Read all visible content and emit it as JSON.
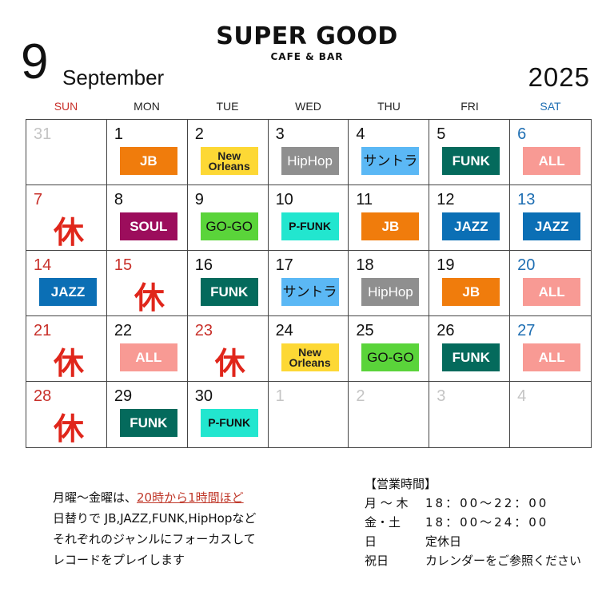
{
  "header": {
    "logo_main": "SUPER GOOD",
    "logo_sub": "CAFE & BAR",
    "month_number": "9",
    "month_name": "September",
    "year": "2025"
  },
  "weekdays": [
    {
      "label": "SUN",
      "color": "#c8302a"
    },
    {
      "label": "MON",
      "color": "#222222"
    },
    {
      "label": "TUE",
      "color": "#222222"
    },
    {
      "label": "WED",
      "color": "#222222"
    },
    {
      "label": "THU",
      "color": "#222222"
    },
    {
      "label": "FRI",
      "color": "#222222"
    },
    {
      "label": "SAT",
      "color": "#1f6fb3"
    }
  ],
  "closed_label": "休",
  "genres": {
    "JB": {
      "bg": "#f07c0c",
      "fg": "#ffffff"
    },
    "New Orleans": {
      "bg": "#fdd835",
      "fg": "#222222"
    },
    "HipHop": {
      "bg": "#8f8f8f",
      "fg": "#ffffff"
    },
    "サントラ": {
      "bg": "#5bb8f5",
      "fg": "#111111"
    },
    "FUNK": {
      "bg": "#046a5c",
      "fg": "#ffffff"
    },
    "ALL": {
      "bg": "#f89a94",
      "fg": "#ffffff"
    },
    "SOUL": {
      "bg": "#9c0d5c",
      "fg": "#ffffff"
    },
    "GO-GO": {
      "bg": "#5ad43a",
      "fg": "#111111"
    },
    "P-FUNK": {
      "bg": "#22e6cf",
      "fg": "#111111"
    },
    "JAZZ": {
      "bg": "#0b6fb5",
      "fg": "#ffffff"
    }
  },
  "days": [
    {
      "day": "31",
      "type": "gray"
    },
    {
      "day": "1",
      "genre": "JB"
    },
    {
      "day": "2",
      "genre": "New Orleans"
    },
    {
      "day": "3",
      "genre": "HipHop"
    },
    {
      "day": "4",
      "genre": "サントラ"
    },
    {
      "day": "5",
      "genre": "FUNK"
    },
    {
      "day": "6",
      "type": "sat",
      "genre": "ALL"
    },
    {
      "day": "7",
      "type": "sun",
      "closed": true
    },
    {
      "day": "8",
      "genre": "SOUL"
    },
    {
      "day": "9",
      "genre": "GO-GO"
    },
    {
      "day": "10",
      "genre": "P-FUNK"
    },
    {
      "day": "11",
      "genre": "JB"
    },
    {
      "day": "12",
      "genre": "JAZZ"
    },
    {
      "day": "13",
      "type": "sat",
      "genre": "JAZZ"
    },
    {
      "day": "14",
      "type": "sun",
      "genre": "JAZZ"
    },
    {
      "day": "15",
      "type": "sun",
      "closed": true
    },
    {
      "day": "16",
      "genre": "FUNK"
    },
    {
      "day": "17",
      "genre": "サントラ"
    },
    {
      "day": "18",
      "genre": "HipHop"
    },
    {
      "day": "19",
      "genre": "JB"
    },
    {
      "day": "20",
      "type": "sat",
      "genre": "ALL"
    },
    {
      "day": "21",
      "type": "sun",
      "closed": true
    },
    {
      "day": "22",
      "genre": "ALL"
    },
    {
      "day": "23",
      "type": "sun",
      "closed": true
    },
    {
      "day": "24",
      "genre": "New Orleans"
    },
    {
      "day": "25",
      "genre": "GO-GO"
    },
    {
      "day": "26",
      "genre": "FUNK"
    },
    {
      "day": "27",
      "type": "sat",
      "genre": "ALL"
    },
    {
      "day": "28",
      "type": "sun",
      "closed": true
    },
    {
      "day": "29",
      "genre": "FUNK"
    },
    {
      "day": "30",
      "genre": "P-FUNK"
    },
    {
      "day": "1",
      "type": "gray"
    },
    {
      "day": "2",
      "type": "gray"
    },
    {
      "day": "3",
      "type": "gray"
    },
    {
      "day": "4",
      "type": "gray"
    }
  ],
  "notes": {
    "line1_prefix": "月曜〜金曜は、",
    "line1_highlight": "20時から1時間ほど",
    "line2": "日替りで JB,JAZZ,FUNK,HipHopなど",
    "line3": "それぞれのジャンルにフォーカスして",
    "line4": "レコードをプレイします"
  },
  "hours": {
    "title": "【営業時間】",
    "rows": [
      {
        "label": "月 〜 木",
        "value": "18：00～22：00"
      },
      {
        "label": "金・土",
        "value": "18：00～24：00"
      },
      {
        "label": "日",
        "value": "定休日"
      },
      {
        "label": "祝日",
        "value": "カレンダーをご参照ください"
      }
    ]
  }
}
